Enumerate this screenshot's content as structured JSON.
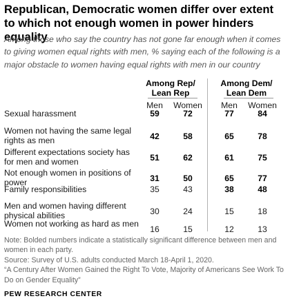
{
  "header": {
    "title": "Republican, Democratic women differ over extent to which not enough women in power hinders equality",
    "subtitle": "Among those who say the country has not gone far enough when it comes to giving women equal rights with men, % saying each of the following is a major obstacle to women having equal rights with men in our country"
  },
  "chart_data": {
    "type": "table",
    "groups": [
      {
        "name": "Among Rep/ Lean Rep",
        "columns": [
          "Men",
          "Women"
        ]
      },
      {
        "name": "Among Dem/ Lean Dem",
        "columns": [
          "Men",
          "Women"
        ]
      }
    ],
    "rows": [
      {
        "label": "Sexual harassment",
        "values": [
          59,
          72,
          77,
          84
        ],
        "bold": [
          true,
          true,
          true,
          true
        ]
      },
      {
        "label": "Women not having the same legal rights as men",
        "values": [
          42,
          58,
          65,
          78
        ],
        "bold": [
          true,
          true,
          true,
          true
        ]
      },
      {
        "label": "Different expectations society has for men and women",
        "values": [
          51,
          62,
          61,
          75
        ],
        "bold": [
          true,
          true,
          true,
          true
        ]
      },
      {
        "label": "Not enough women in positions of power",
        "values": [
          31,
          50,
          65,
          77
        ],
        "bold": [
          true,
          true,
          true,
          true
        ]
      },
      {
        "label": "Family responsibilities",
        "values": [
          35,
          43,
          38,
          48
        ],
        "bold": [
          false,
          false,
          true,
          true
        ]
      },
      {
        "label": "Men and women having different physical abilities",
        "values": [
          30,
          24,
          15,
          18
        ],
        "bold": [
          false,
          false,
          false,
          false
        ]
      },
      {
        "label": "Women not working as hard as men",
        "values": [
          16,
          15,
          12,
          13
        ],
        "bold": [
          false,
          false,
          false,
          false
        ]
      }
    ]
  },
  "notes": {
    "note": "Note: Bolded numbers indicate a statistically significant difference between men and women in each party.",
    "source": "Source: Survey of U.S. adults conducted March 18-April 1, 2020.",
    "report": "“A Century After Women Gained the Right To Vote, Majority of Americans See Work To Do on Gender Equality”"
  },
  "footer": {
    "logo": "PEW RESEARCH CENTER"
  }
}
